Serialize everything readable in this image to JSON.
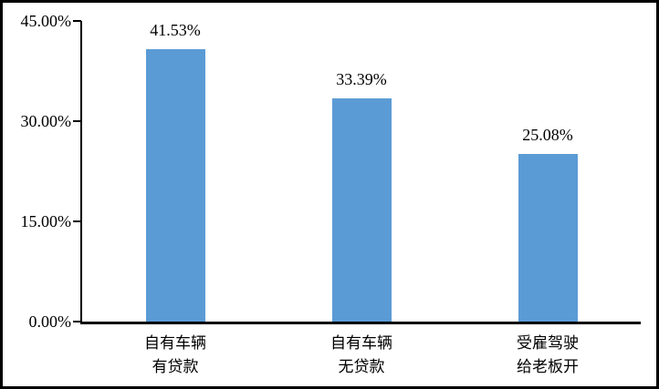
{
  "chart_data": {
    "type": "bar",
    "title": "",
    "xlabel": "",
    "ylabel": "",
    "categories": [
      [
        "自有车辆",
        "有贷款"
      ],
      [
        "自有车辆",
        "无贷款"
      ],
      [
        "受雇驾驶",
        "给老板开"
      ]
    ],
    "values": [
      41.53,
      33.39,
      25.08
    ],
    "value_labels": [
      "41.53%",
      "33.39%",
      "25.08%"
    ],
    "ylim": [
      0,
      45
    ],
    "y_ticks": [
      {
        "value": 0,
        "label": "0.00%"
      },
      {
        "value": 15,
        "label": "15.00%"
      },
      {
        "value": 30,
        "label": "30.00%"
      },
      {
        "value": 45,
        "label": "45.00%"
      }
    ],
    "grid": false,
    "legend": false,
    "colors": {
      "bar": "#5B9BD5",
      "axis": "#000000",
      "text": "#000000",
      "frame_border": "#000000",
      "background": "#FFFFFF"
    }
  }
}
